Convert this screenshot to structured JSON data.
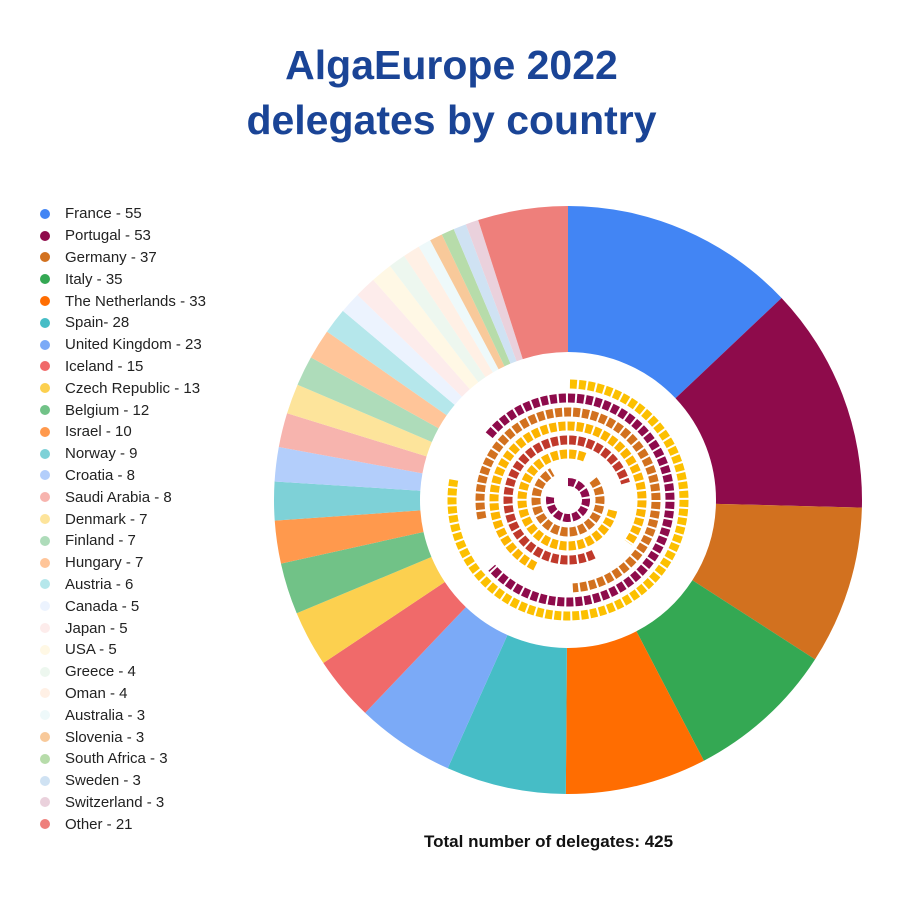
{
  "title_line1": "AlgaEurope 2022",
  "title_line2": "delegates by country",
  "total_label": "Total number of delegates: 425",
  "chart_data": {
    "type": "pie",
    "variant": "donut",
    "title": "AlgaEurope 2022 delegates by country",
    "legend_position": "left",
    "start": "top, clockwise",
    "slices": [
      {
        "label": "France - 55",
        "name": "France",
        "value": 55,
        "color": "#4285f4"
      },
      {
        "label": "Portugal - 53",
        "name": "Portugal",
        "value": 53,
        "color": "#8e0b4b"
      },
      {
        "label": "Germany - 37",
        "name": "Germany",
        "value": 37,
        "color": "#d2711f"
      },
      {
        "label": "Italy - 35",
        "name": "Italy",
        "value": 35,
        "color": "#34a853"
      },
      {
        "label": "The Netherlands - 33",
        "name": "The Netherlands",
        "value": 33,
        "color": "#ff6d01"
      },
      {
        "label": "Spain- 28",
        "name": "Spain",
        "value": 28,
        "color": "#46bdc6"
      },
      {
        "label": "United Kingdom - 23",
        "name": "United Kingdom",
        "value": 23,
        "color": "#7baaf7"
      },
      {
        "label": "Iceland - 15",
        "name": "Iceland",
        "value": 15,
        "color": "#f06a6a"
      },
      {
        "label": "Czech Republic - 13",
        "name": "Czech Republic",
        "value": 13,
        "color": "#fcd04f"
      },
      {
        "label": "Belgium - 12",
        "name": "Belgium",
        "value": 12,
        "color": "#71c287"
      },
      {
        "label": "Israel - 10",
        "name": "Israel",
        "value": 10,
        "color": "#ff994d"
      },
      {
        "label": "Norway - 9",
        "name": "Norway",
        "value": 9,
        "color": "#7ed1d7"
      },
      {
        "label": "Croatia - 8",
        "name": "Croatia",
        "value": 8,
        "color": "#b3cefb"
      },
      {
        "label": "Saudi Arabia - 8",
        "name": "Saudi Arabia",
        "value": 8,
        "color": "#f7b4ae"
      },
      {
        "label": "Denmark - 7",
        "name": "Denmark",
        "value": 7,
        "color": "#fde49b"
      },
      {
        "label": "Finland - 7",
        "name": "Finland",
        "value": 7,
        "color": "#aedcba"
      },
      {
        "label": "Hungary - 7",
        "name": "Hungary",
        "value": 7,
        "color": "#ffc599"
      },
      {
        "label": "Austria - 6",
        "name": "Austria",
        "value": 6,
        "color": "#b5e7eb"
      },
      {
        "label": "Canada - 5",
        "name": "Canada",
        "value": 5,
        "color": "#ecf3fe"
      },
      {
        "label": "Japan - 5",
        "name": "Japan",
        "value": 5,
        "color": "#fdeceb"
      },
      {
        "label": "USA - 5",
        "name": "USA",
        "value": 5,
        "color": "#fff8e5"
      },
      {
        "label": "Greece - 4",
        "name": "Greece",
        "value": 4,
        "color": "#edf7ef"
      },
      {
        "label": "Oman - 4",
        "name": "Oman",
        "value": 4,
        "color": "#fff0e5"
      },
      {
        "label": "Australia - 3",
        "name": "Australia",
        "value": 3,
        "color": "#eef9fa"
      },
      {
        "label": "Slovenia - 3",
        "name": "Slovenia",
        "value": 3,
        "color": "#f8c99a"
      },
      {
        "label": "South Africa - 3",
        "name": "South Africa",
        "value": 3,
        "color": "#b7dcaa"
      },
      {
        "label": "Sweden - 3",
        "name": "Sweden",
        "value": 3,
        "color": "#cfe2f3"
      },
      {
        "label": "Switzerland - 3",
        "name": "Switzerland",
        "value": 3,
        "color": "#ead1dc"
      },
      {
        "label": "Other - 21",
        "name": "Other",
        "value": 21,
        "color": "#ee7f7b"
      }
    ]
  }
}
